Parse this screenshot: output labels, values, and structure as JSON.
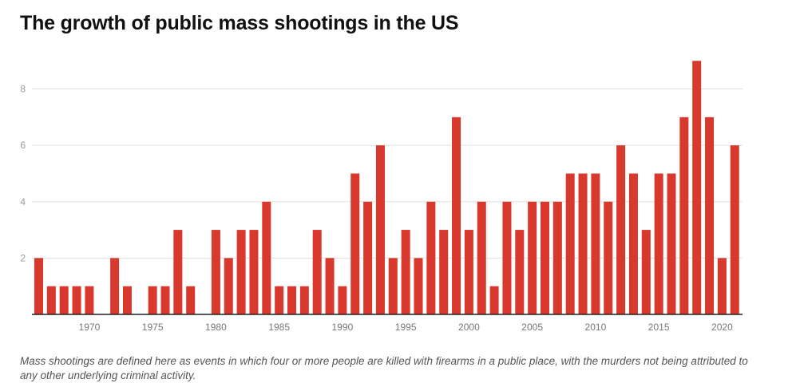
{
  "header": {
    "title": "The growth of public mass shootings in the US"
  },
  "footer": {
    "note": "Mass shootings are defined here as events in which four or more people are killed with firearms in a public place, with the murders not being attributed to any other underlying criminal activity."
  },
  "colors": {
    "bar": "#d9392d",
    "gridline": "#e0e0e0",
    "axis": "#222222"
  },
  "chart_data": {
    "type": "bar",
    "title": "The growth of public mass shootings in the US",
    "xlabel": "",
    "ylabel": "",
    "ylim": [
      0,
      9.8
    ],
    "grid": true,
    "legend": "none",
    "y_ticks": [
      2,
      4,
      6,
      8
    ],
    "x_tick_labels": [
      "1970",
      "1975",
      "1980",
      "1985",
      "1990",
      "1995",
      "2000",
      "2005",
      "2010",
      "2015",
      "2020"
    ],
    "categories": [
      1966,
      1967,
      1968,
      1969,
      1970,
      1971,
      1972,
      1973,
      1974,
      1975,
      1976,
      1977,
      1978,
      1979,
      1980,
      1981,
      1982,
      1983,
      1984,
      1985,
      1986,
      1987,
      1988,
      1989,
      1990,
      1991,
      1992,
      1993,
      1994,
      1995,
      1996,
      1997,
      1998,
      1999,
      2000,
      2001,
      2002,
      2003,
      2004,
      2005,
      2006,
      2007,
      2008,
      2009,
      2010,
      2011,
      2012,
      2013,
      2014,
      2015,
      2016,
      2017,
      2018,
      2019,
      2020,
      2021
    ],
    "values": [
      2,
      1,
      1,
      1,
      1,
      0,
      2,
      1,
      0,
      1,
      1,
      3,
      1,
      0,
      3,
      2,
      3,
      3,
      4,
      1,
      1,
      1,
      3,
      2,
      1,
      5,
      4,
      6,
      2,
      3,
      2,
      4,
      3,
      7,
      3,
      4,
      1,
      4,
      3,
      4,
      4,
      4,
      5,
      5,
      5,
      4,
      6,
      5,
      3,
      5,
      5,
      7,
      9,
      7,
      2,
      6
    ]
  }
}
